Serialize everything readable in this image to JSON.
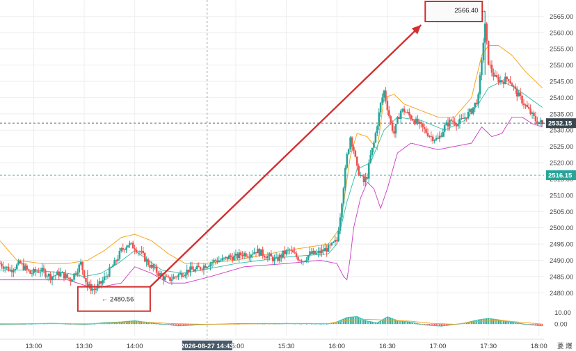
{
  "chart_data": {
    "type": "candlestick",
    "ylim": [
      2476,
      2570
    ],
    "y_ticks": [
      "2565.00",
      "2560.00",
      "2555.00",
      "2550.00",
      "2545.00",
      "2540.00",
      "2535.00",
      "2530.00",
      "2525.00",
      "2520.00",
      "2515.00",
      "2510.00",
      "2505.00",
      "2500.00",
      "2495.00",
      "2490.00",
      "2485.00",
      "2480.00"
    ],
    "x_ticks": [
      {
        "label": "13:00",
        "minutes": 780
      },
      {
        "label": "13:30",
        "minutes": 810
      },
      {
        "label": "14:00",
        "minutes": 840
      },
      {
        "label": "15:00",
        "minutes": 900
      },
      {
        "label": "15:30",
        "minutes": 930
      },
      {
        "label": "16:00",
        "minutes": 960
      },
      {
        "label": "16:30",
        "minutes": 990
      },
      {
        "label": "17:00",
        "minutes": 1020
      },
      {
        "label": "17:30",
        "minutes": 1050
      },
      {
        "label": "18:00",
        "minutes": 1080
      }
    ],
    "x_range_minutes": [
      760,
      1083
    ],
    "crosshair": {
      "x_label": "2026-08-27 14:43",
      "minutes": 883
    },
    "price_tags": [
      {
        "label": "2532.15",
        "value": 2532.15,
        "color": "#37474f"
      },
      {
        "label": "2516.15",
        "value": 2516.15,
        "color": "#26a69a"
      }
    ],
    "horizontal_lines": [
      2532.15,
      2516.15
    ],
    "annotations": {
      "low": {
        "label": "2480.56",
        "value": 2480.56
      },
      "high": {
        "label": "2566.40",
        "value": 2566.4
      }
    },
    "price_keypoints": [
      [
        760,
        2489
      ],
      [
        766,
        2487
      ],
      [
        772,
        2489
      ],
      [
        778,
        2486
      ],
      [
        784,
        2487
      ],
      [
        790,
        2485
      ],
      [
        796,
        2486
      ],
      [
        802,
        2484
      ],
      [
        808,
        2489
      ],
      [
        812,
        2482
      ],
      [
        816,
        2481
      ],
      [
        820,
        2483
      ],
      [
        824,
        2486
      ],
      [
        828,
        2489
      ],
      [
        832,
        2493
      ],
      [
        836,
        2495
      ],
      [
        840,
        2494
      ],
      [
        844,
        2492
      ],
      [
        848,
        2489
      ],
      [
        852,
        2487
      ],
      [
        856,
        2485
      ],
      [
        860,
        2484
      ],
      [
        864,
        2485
      ],
      [
        868,
        2486
      ],
      [
        872,
        2487
      ],
      [
        876,
        2487
      ],
      [
        880,
        2488
      ],
      [
        884,
        2489
      ],
      [
        888,
        2490
      ],
      [
        892,
        2490
      ],
      [
        896,
        2491
      ],
      [
        900,
        2491
      ],
      [
        904,
        2492
      ],
      [
        908,
        2492
      ],
      [
        912,
        2493
      ],
      [
        916,
        2492
      ],
      [
        920,
        2491
      ],
      [
        924,
        2490
      ],
      [
        928,
        2492
      ],
      [
        932,
        2493
      ],
      [
        936,
        2491
      ],
      [
        940,
        2490
      ],
      [
        944,
        2492
      ],
      [
        948,
        2492
      ],
      [
        952,
        2493
      ],
      [
        956,
        2494
      ],
      [
        960,
        2496
      ],
      [
        962,
        2504
      ],
      [
        964,
        2513
      ],
      [
        966,
        2522
      ],
      [
        968,
        2528
      ],
      [
        970,
        2524
      ],
      [
        972,
        2518
      ],
      [
        974,
        2516
      ],
      [
        976,
        2514
      ],
      [
        978,
        2516
      ],
      [
        980,
        2522
      ],
      [
        982,
        2526
      ],
      [
        984,
        2532
      ],
      [
        986,
        2538
      ],
      [
        988,
        2542
      ],
      [
        990,
        2537
      ],
      [
        992,
        2532
      ],
      [
        994,
        2529
      ],
      [
        996,
        2533
      ],
      [
        998,
        2536
      ],
      [
        1000,
        2536
      ],
      [
        1004,
        2534
      ],
      [
        1008,
        2532
      ],
      [
        1012,
        2530
      ],
      [
        1016,
        2528
      ],
      [
        1020,
        2527
      ],
      [
        1024,
        2531
      ],
      [
        1028,
        2533
      ],
      [
        1032,
        2532
      ],
      [
        1036,
        2534
      ],
      [
        1040,
        2536
      ],
      [
        1044,
        2540
      ],
      [
        1046,
        2552
      ],
      [
        1048,
        2562
      ],
      [
        1050,
        2551
      ],
      [
        1052,
        2548
      ],
      [
        1054,
        2546
      ],
      [
        1058,
        2545
      ],
      [
        1062,
        2546
      ],
      [
        1066,
        2542
      ],
      [
        1070,
        2539
      ],
      [
        1074,
        2536
      ],
      [
        1078,
        2533
      ],
      [
        1082,
        2532
      ]
    ],
    "ma_fast_keypoints": [
      [
        760,
        2487
      ],
      [
        780,
        2487
      ],
      [
        800,
        2486
      ],
      [
        810,
        2485
      ],
      [
        820,
        2486
      ],
      [
        830,
        2489
      ],
      [
        840,
        2493
      ],
      [
        848,
        2490
      ],
      [
        856,
        2487
      ],
      [
        868,
        2486
      ],
      [
        880,
        2487
      ],
      [
        900,
        2489
      ],
      [
        930,
        2491
      ],
      [
        955,
        2492
      ],
      [
        960,
        2495
      ],
      [
        966,
        2508
      ],
      [
        972,
        2518
      ],
      [
        980,
        2520
      ],
      [
        988,
        2530
      ],
      [
        996,
        2534
      ],
      [
        1010,
        2533
      ],
      [
        1024,
        2530
      ],
      [
        1036,
        2533
      ],
      [
        1044,
        2538
      ],
      [
        1050,
        2543
      ],
      [
        1058,
        2545
      ],
      [
        1066,
        2543
      ],
      [
        1074,
        2540
      ],
      [
        1082,
        2537
      ]
    ],
    "ma_upper_keypoints": [
      [
        760,
        2496
      ],
      [
        770,
        2490
      ],
      [
        785,
        2489
      ],
      [
        800,
        2489
      ],
      [
        812,
        2490
      ],
      [
        822,
        2493
      ],
      [
        832,
        2497
      ],
      [
        840,
        2498
      ],
      [
        850,
        2496
      ],
      [
        860,
        2492
      ],
      [
        870,
        2489
      ],
      [
        880,
        2489
      ],
      [
        900,
        2490
      ],
      [
        930,
        2493
      ],
      [
        955,
        2495
      ],
      [
        962,
        2500
      ],
      [
        968,
        2522
      ],
      [
        972,
        2529
      ],
      [
        978,
        2528
      ],
      [
        984,
        2524
      ],
      [
        988,
        2540
      ],
      [
        994,
        2541
      ],
      [
        1000,
        2538
      ],
      [
        1010,
        2536
      ],
      [
        1020,
        2534
      ],
      [
        1030,
        2534
      ],
      [
        1040,
        2540
      ],
      [
        1046,
        2553
      ],
      [
        1050,
        2556
      ],
      [
        1056,
        2556
      ],
      [
        1064,
        2553
      ],
      [
        1072,
        2548
      ],
      [
        1082,
        2543
      ]
    ],
    "ma_lower_keypoints": [
      [
        760,
        2484
      ],
      [
        780,
        2484
      ],
      [
        800,
        2484
      ],
      [
        812,
        2482
      ],
      [
        822,
        2482
      ],
      [
        832,
        2483
      ],
      [
        840,
        2488
      ],
      [
        850,
        2486
      ],
      [
        860,
        2483
      ],
      [
        870,
        2483
      ],
      [
        885,
        2485
      ],
      [
        905,
        2488
      ],
      [
        930,
        2489
      ],
      [
        950,
        2490
      ],
      [
        960,
        2489
      ],
      [
        964,
        2485
      ],
      [
        966,
        2484
      ],
      [
        968,
        2491
      ],
      [
        970,
        2500
      ],
      [
        974,
        2509
      ],
      [
        978,
        2514
      ],
      [
        982,
        2512
      ],
      [
        986,
        2506
      ],
      [
        990,
        2512
      ],
      [
        996,
        2523
      ],
      [
        1004,
        2526
      ],
      [
        1012,
        2525
      ],
      [
        1020,
        2524
      ],
      [
        1030,
        2525
      ],
      [
        1040,
        2526
      ],
      [
        1046,
        2531
      ],
      [
        1052,
        2528
      ],
      [
        1058,
        2529
      ],
      [
        1064,
        2534
      ],
      [
        1070,
        2534
      ],
      [
        1076,
        2532
      ],
      [
        1082,
        2531
      ]
    ],
    "macd_ylim": [
      -10,
      12
    ],
    "macd_y_ticks": [
      "10.00",
      "0.00"
    ],
    "macd_keypoints": [
      [
        760,
        -0.5
      ],
      [
        790,
        0.6
      ],
      [
        800,
        0.3
      ],
      [
        810,
        -0.6
      ],
      [
        822,
        1.2
      ],
      [
        832,
        1.8
      ],
      [
        840,
        2.8
      ],
      [
        852,
        0.6
      ],
      [
        866,
        -1.6
      ],
      [
        876,
        -0.8
      ],
      [
        900,
        0.4
      ],
      [
        930,
        0.5
      ],
      [
        955,
        0.3
      ],
      [
        960,
        1.8
      ],
      [
        966,
        5.6
      ],
      [
        972,
        6.4
      ],
      [
        978,
        2.5
      ],
      [
        984,
        1.0
      ],
      [
        990,
        6.2
      ],
      [
        996,
        3.0
      ],
      [
        1004,
        1.5
      ],
      [
        1012,
        -0.8
      ],
      [
        1022,
        -1.8
      ],
      [
        1034,
        0.3
      ],
      [
        1044,
        3.6
      ],
      [
        1050,
        4.8
      ],
      [
        1058,
        3.2
      ],
      [
        1066,
        1.2
      ],
      [
        1074,
        -0.6
      ],
      [
        1082,
        -1.6
      ]
    ],
    "macd_signal_keypoints": [
      [
        760,
        0.2
      ],
      [
        790,
        0.5
      ],
      [
        810,
        0.2
      ],
      [
        830,
        0.9
      ],
      [
        845,
        1.8
      ],
      [
        860,
        0.5
      ],
      [
        880,
        -0.2
      ],
      [
        920,
        0.3
      ],
      [
        955,
        0.4
      ],
      [
        966,
        3.2
      ],
      [
        978,
        4.0
      ],
      [
        990,
        3.4
      ],
      [
        1004,
        2.4
      ],
      [
        1016,
        0.6
      ],
      [
        1030,
        -0.2
      ],
      [
        1046,
        2.5
      ],
      [
        1058,
        3.0
      ],
      [
        1070,
        1.4
      ],
      [
        1082,
        0.0
      ]
    ],
    "colors": {
      "up": "#26a69a",
      "down": "#ef5350",
      "ma_upper": "#f5a623",
      "ma_fast": "#3fc1a9",
      "ma_lower": "#d147c9",
      "arrow": "#d32f2f",
      "tag_last": "#37474f",
      "tag_teal": "#26a69a",
      "crosshair_tag": "#4a5a6a",
      "grid": "#eeeeee"
    }
  },
  "toolbar_glyphs": "菱 爆"
}
